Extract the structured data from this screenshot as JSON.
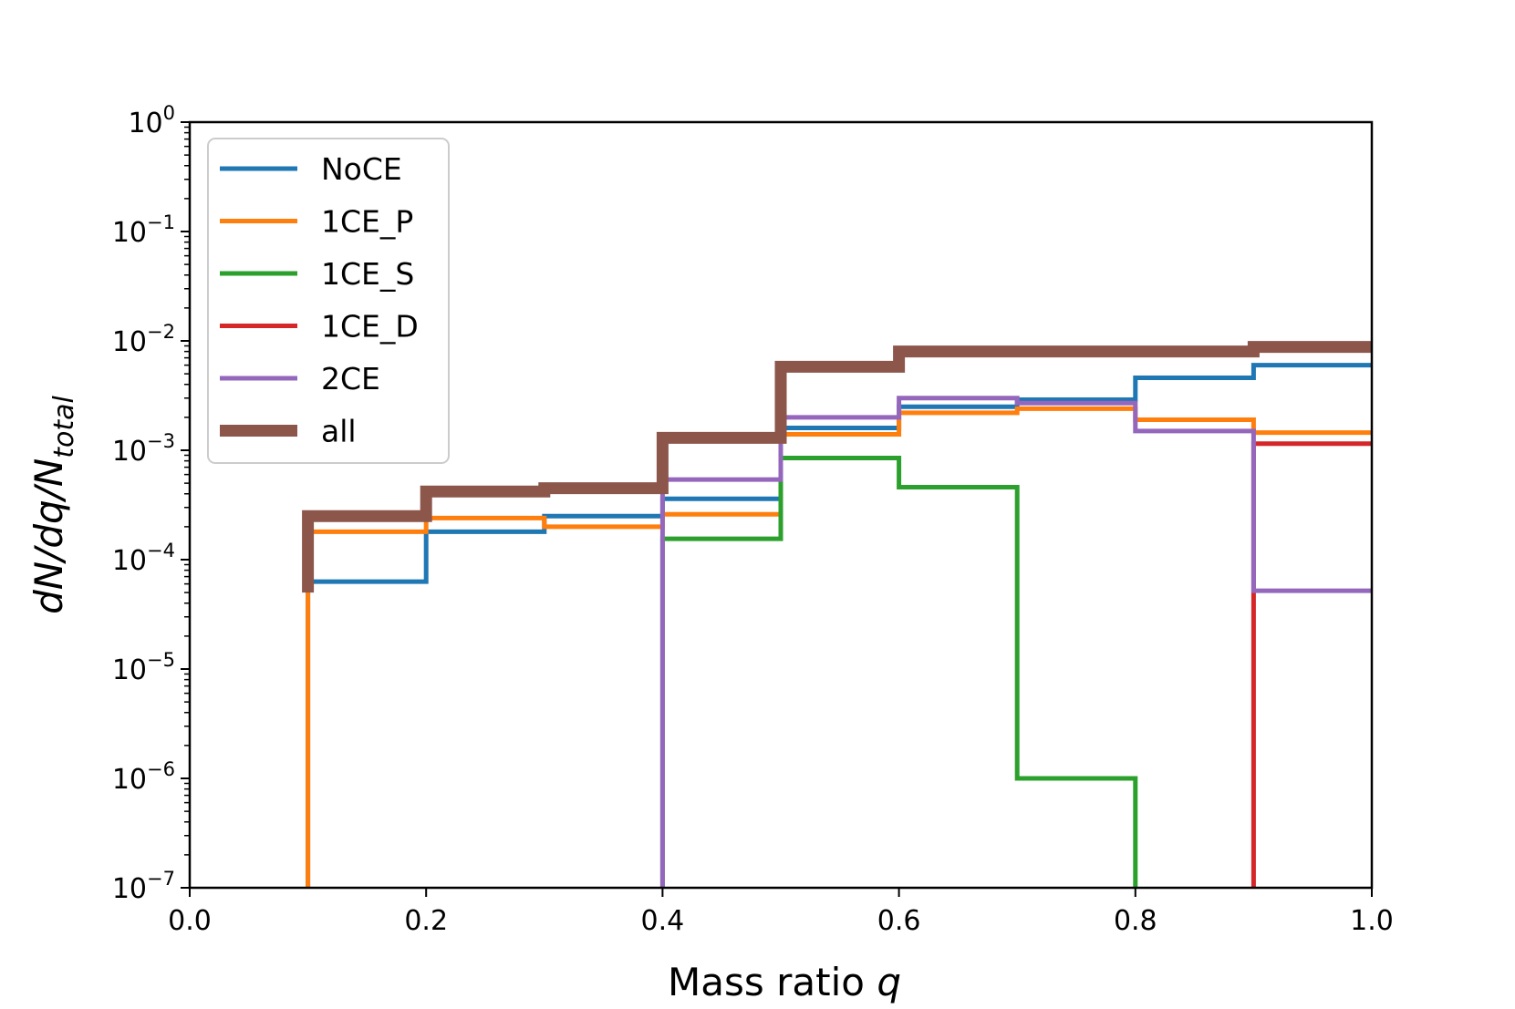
{
  "chart_data": {
    "type": "line",
    "style": "step-histogram",
    "xlabel_text": "Mass ratio",
    "xlabel_var": "q",
    "ylabel": "dN/dq/N_total",
    "ylabel_parts": {
      "main": "dN/dq/N",
      "sub": "total"
    },
    "xlim": [
      0.0,
      1.0
    ],
    "ylim": [
      1e-07,
      1
    ],
    "yscale": "log",
    "xticks": [
      0.0,
      0.2,
      0.4,
      0.6,
      0.8,
      1.0
    ],
    "xtick_labels": [
      "0.0",
      "0.2",
      "0.4",
      "0.6",
      "0.8",
      "1.0"
    ],
    "yticks": [
      {
        "value": 1.0,
        "base": "10",
        "exp": "0"
      },
      {
        "value": 0.1,
        "base": "10",
        "exp": "−1"
      },
      {
        "value": 0.01,
        "base": "10",
        "exp": "−2"
      },
      {
        "value": 0.001,
        "base": "10",
        "exp": "−3"
      },
      {
        "value": 0.0001,
        "base": "10",
        "exp": "−4"
      },
      {
        "value": 1e-05,
        "base": "10",
        "exp": "−5"
      },
      {
        "value": 1e-06,
        "base": "10",
        "exp": "−6"
      },
      {
        "value": 1e-07,
        "base": "10",
        "exp": "−7"
      }
    ],
    "bin_edges": [
      0.1,
      0.2,
      0.3,
      0.4,
      0.5,
      0.6,
      0.7,
      0.8,
      0.9,
      1.0
    ],
    "legend_position": "upper-left",
    "series": [
      {
        "name": "NoCE",
        "color": "#1f77b4",
        "width": "normal",
        "values": [
          6.3e-05,
          0.00018,
          0.00025,
          0.00036,
          0.0016,
          0.0025,
          0.0029,
          0.0046,
          0.006
        ]
      },
      {
        "name": "1CE_P",
        "color": "#ff7f0e",
        "width": "normal",
        "values": [
          0.00018,
          0.00024,
          0.0002,
          0.00026,
          0.0014,
          0.0022,
          0.0024,
          0.0019,
          0.00145
        ]
      },
      {
        "name": "1CE_S",
        "color": "#2ca02c",
        "width": "normal",
        "values": [
          null,
          null,
          null,
          0.000155,
          0.00085,
          0.00046,
          1e-06,
          null,
          null
        ]
      },
      {
        "name": "1CE_D",
        "color": "#d62728",
        "width": "normal",
        "values": [
          null,
          null,
          null,
          null,
          null,
          null,
          null,
          null,
          0.00115
        ]
      },
      {
        "name": "2CE",
        "color": "#9467bd",
        "width": "normal",
        "values": [
          null,
          null,
          null,
          0.00054,
          0.002,
          0.003,
          0.0027,
          0.0015,
          5.2e-05
        ]
      },
      {
        "name": "all",
        "color": "#8c564b",
        "width": "thick",
        "values": [
          0.00025,
          0.00042,
          0.00045,
          0.0013,
          0.0058,
          0.008,
          0.008,
          0.008,
          0.0088
        ]
      }
    ]
  }
}
